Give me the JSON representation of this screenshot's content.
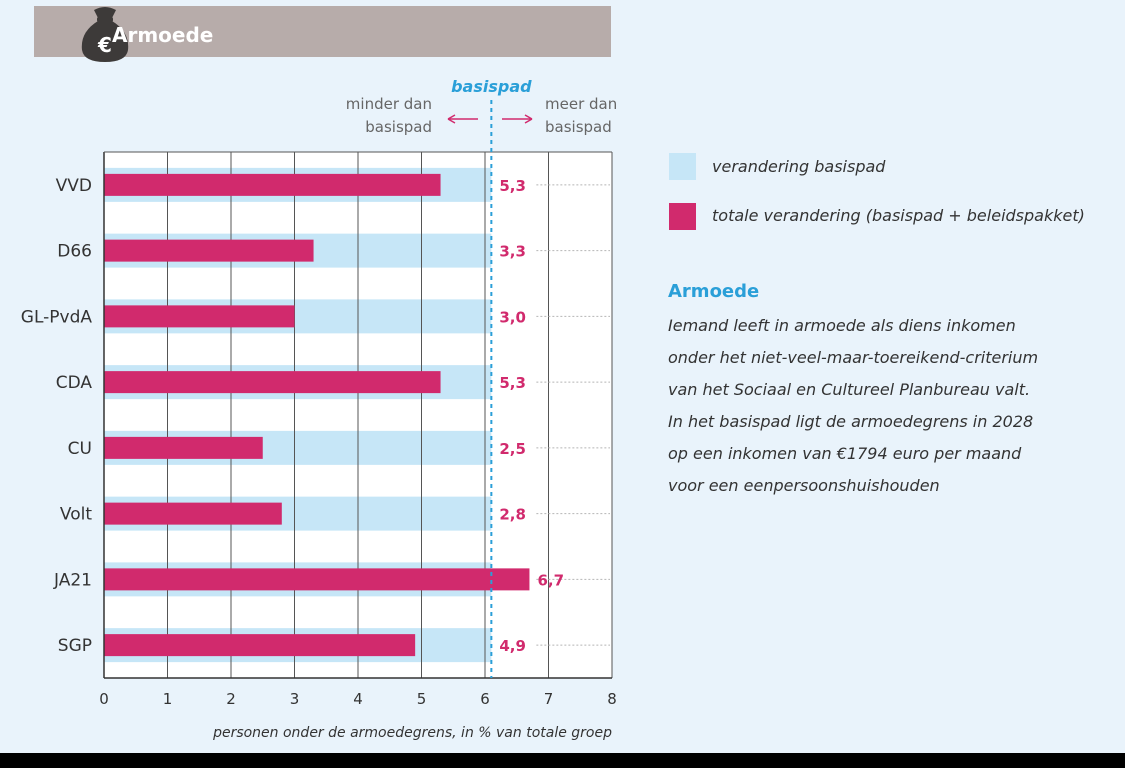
{
  "header": {
    "title": "Armoede",
    "icon": "money-bag-euro-icon",
    "icon_symbol": "€"
  },
  "chart_data": {
    "type": "bar",
    "categories": [
      "VVD",
      "D66",
      "GL-PvdA",
      "CDA",
      "CU",
      "Volt",
      "JA21",
      "SGP"
    ],
    "series": [
      {
        "name": "verandering basispad",
        "values": [
          6.1,
          6.1,
          6.1,
          6.1,
          6.1,
          6.1,
          6.1,
          6.1
        ],
        "color": "#c6e6f7"
      },
      {
        "name": "totale verandering (basispad + beleidspakket)",
        "values": [
          5.3,
          3.3,
          3.0,
          5.3,
          2.5,
          2.8,
          6.7,
          4.9
        ],
        "color": "#d12a6d"
      }
    ],
    "value_labels": [
      "5,3",
      "3,3",
      "3,0",
      "5,3",
      "2,5",
      "2,8",
      "6,7",
      "4,9"
    ],
    "xlim": [
      0,
      8
    ],
    "x_ticks": [
      0,
      1,
      2,
      3,
      4,
      5,
      6,
      7,
      8
    ],
    "x_tick_labels": [
      "0",
      "1",
      "2",
      "3",
      "4",
      "5",
      "6",
      "7",
      "8"
    ],
    "xlabel": "personen onder de armoedegrens, in % van totale groep",
    "reference_line": {
      "value": 6.1,
      "label": "basispad"
    },
    "left_annotation": [
      "minder dan",
      "basispad"
    ],
    "right_annotation": [
      "meer dan",
      "basispad"
    ],
    "grid": true,
    "orientation": "horizontal",
    "accent_color": "#2a9fd8",
    "label_color": "#d12a6d"
  },
  "legend": [
    {
      "label": "verandering basispad",
      "color": "#c6e6f7"
    },
    {
      "label": "totale verandering (basispad + beleidspakket)",
      "color": "#d12a6d"
    }
  ],
  "info": {
    "title": "Armoede",
    "lines": [
      "Iemand leeft in armoede als diens inkomen",
      "onder het niet-veel-maar-toereikend-criterium",
      "van het Sociaal en Cultureel Planbureau valt.",
      "In het basispad ligt de armoedegrens in 2028",
      "op een inkomen van €1794 euro per maand",
      "voor een eenpersoonshuishouden"
    ]
  }
}
